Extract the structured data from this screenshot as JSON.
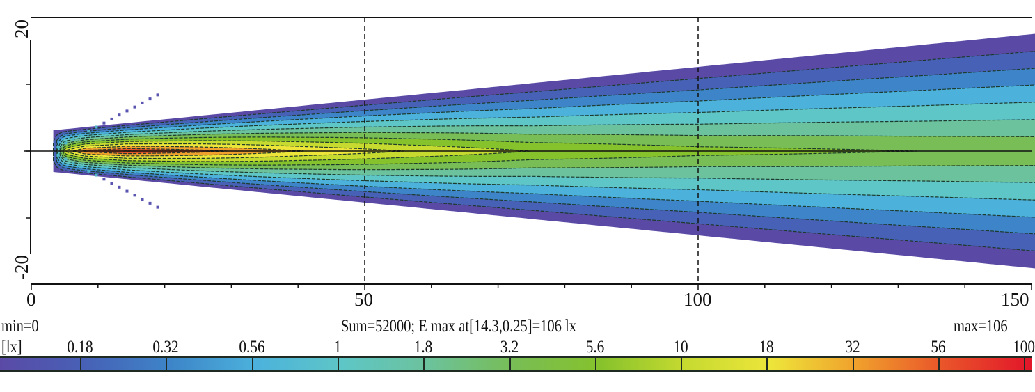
{
  "chart_data": {
    "type": "heatmap",
    "xlim": [
      0,
      150
    ],
    "ylim": [
      -20,
      20
    ],
    "x_ticks": [
      "0",
      "50",
      "100",
      "150"
    ],
    "x_minor_step": 10,
    "y_ticks": [
      "20",
      "-20"
    ],
    "y_minor_step": 10,
    "grid": {
      "vertical_dashed_at": [
        50,
        100
      ],
      "horizontal_solid_at": [
        0
      ]
    },
    "unit": "[lx]",
    "min_label": "min=0",
    "max_label": "max=106",
    "summary": "Sum=52000; E max at[14.3,0.25]=106 lx",
    "emax": {
      "x": 14.3,
      "y": 0.25,
      "value": 106
    },
    "colorbar": {
      "tick_labels": [
        "0.18",
        "0.32",
        "0.56",
        "1",
        "1.8",
        "3.2",
        "5.6",
        "10",
        "18",
        "32",
        "56",
        "100"
      ],
      "levels": [
        0.18,
        0.32,
        0.56,
        1,
        1.8,
        3.2,
        5.6,
        10,
        18,
        32,
        56,
        100
      ],
      "colors": [
        "#5a4aa6",
        "#4761b6",
        "#3d85c8",
        "#4cb2dc",
        "#5ec6c6",
        "#6cc29c",
        "#78bd55",
        "#86c22c",
        "#c6da30",
        "#ede53a",
        "#f0a02c",
        "#e9552a",
        "#e2182a"
      ]
    }
  }
}
